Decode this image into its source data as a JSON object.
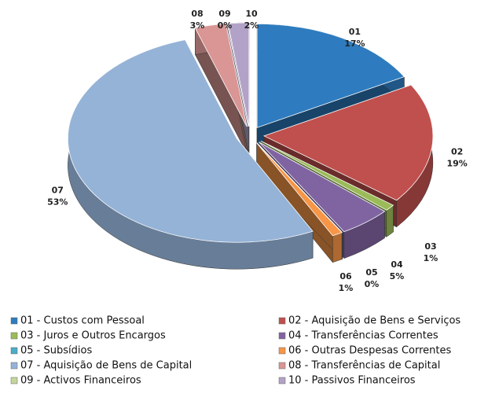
{
  "chart_data": {
    "type": "pie3d",
    "slice_labels": [
      "01",
      "02",
      "03",
      "04",
      "05",
      "06",
      "07",
      "08",
      "09",
      "10"
    ],
    "categories": [
      "01 - Custos com Pessoal",
      "02 - Aquisição de Bens e Serviços",
      "03 - Juros e Outros Encargos",
      "04 - Transferências Correntes",
      "05 - Subsídios",
      "06 - Outras Despesas Correntes",
      "07 - Aquisição de Bens de Capital",
      "08 - Transferências de Capital",
      "09 - Activos Financeiros",
      "10 - Passivos Financeiros"
    ],
    "values": [
      17,
      19,
      1,
      5,
      0,
      1,
      53,
      3,
      0,
      2
    ],
    "value_labels": [
      "17%",
      "19%",
      "1%",
      "5%",
      "0%",
      "1%",
      "53%",
      "3%",
      "0%",
      "2%"
    ],
    "colors": [
      "#2e7cbf",
      "#c0504d",
      "#9bbb59",
      "#8064a2",
      "#4bacc6",
      "#f79646",
      "#95b3d7",
      "#d99694",
      "#c3d69b",
      "#b3a2c7"
    ]
  }
}
